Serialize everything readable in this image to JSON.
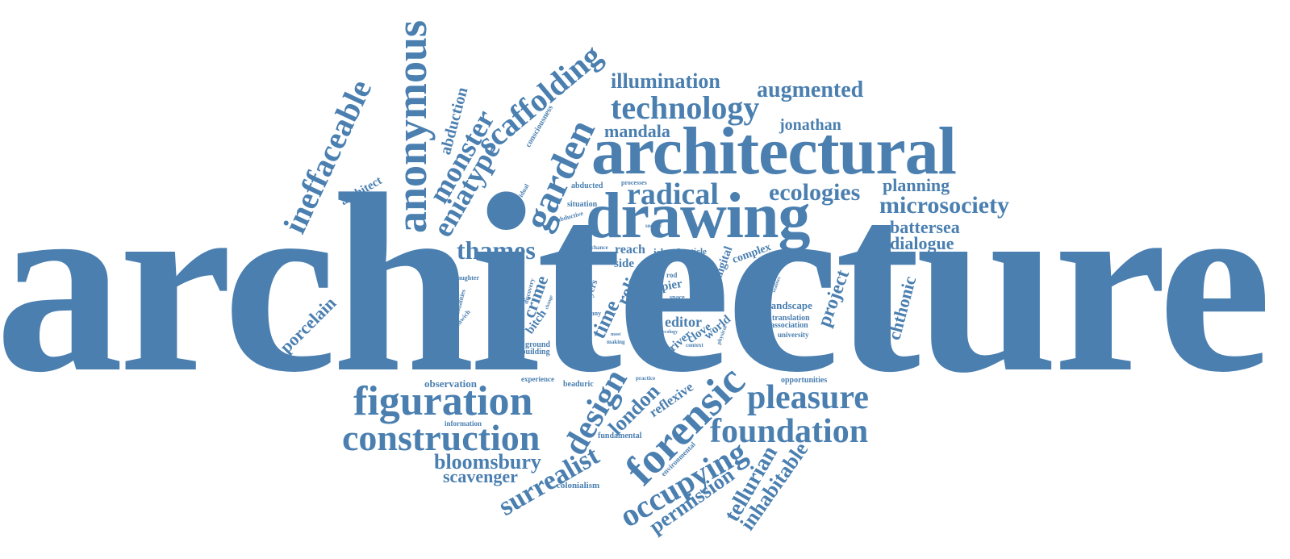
{
  "theme": {
    "word_color": "#4a7fb0",
    "background": "#ffffff"
  },
  "words": {
    "architecture": "architecture",
    "architectural": "architectural",
    "drawing": "drawing",
    "anonymous": "anonymous",
    "ineffaceable": "ineffaceable",
    "scaffolding": "scaffolding",
    "garden": "garden",
    "eniatype": "eniatype",
    "monster": "monster",
    "abduction": "abduction",
    "consciousness": "consciousness",
    "architect": "architect",
    "illumination": "illumination",
    "augmented": "augmented",
    "technology": "technology",
    "jonathan": "jonathan",
    "mandala": "mandala",
    "radical": "radical",
    "ecologies": "ecologies",
    "planning": "planning",
    "microsociety": "microsociety",
    "battersea": "battersea",
    "dialogue": "dialogue",
    "thames": "thames",
    "processes": "processes",
    "abducted": "abducted",
    "situation": "situation",
    "abductive": "abductive",
    "individual": "individual",
    "society": "society",
    "reach": "reach",
    "island": "island",
    "article": "article",
    "chance": "chance",
    "spatial": "spatial",
    "side": "side",
    "complex": "complex",
    "digital": "digital",
    "relic": "relic",
    "time": "time",
    "pier": "pier",
    "rod": "rod",
    "space": "space",
    "tyers": "tyers",
    "many": "many",
    "slaughter": "slaughter",
    "modalities": "modalities",
    "greenwich": "greenwich",
    "discovery": "discovery",
    "crime": "crime",
    "bitch": "bitch",
    "change": "change",
    "porcelain": "porcelain",
    "ground": "ground",
    "building": "building",
    "editor": "editor",
    "river": "river",
    "clove": "clove",
    "world": "world",
    "context": "context",
    "physical": "physical",
    "ecology": "ecology",
    "making": "making",
    "most": "most",
    "landscape": "landscape",
    "translation": "translation",
    "association": "association",
    "university": "university",
    "project": "project",
    "chthonic": "chthonic",
    "realities": "realities",
    "observation": "observation",
    "experience": "experience",
    "beaduric": "beaduric",
    "practice": "practice",
    "opportunities": "opportunities",
    "figuration": "figuration",
    "design": "design",
    "london": "london",
    "forensic": "forensic",
    "reflexive": "reflexive",
    "pleasure": "pleasure",
    "foundation": "foundation",
    "information": "information",
    "construction": "construction",
    "fundamental": "fundamental",
    "environmental": "environmental",
    "bloomsbury": "bloomsbury",
    "surrealist": "surrealist",
    "scavenger": "scavenger",
    "colonialism": "colonialism",
    "occupying": "occupying",
    "permission": "permission",
    "tellurian": "tellurian",
    "inhabitable": "inhabitable"
  }
}
